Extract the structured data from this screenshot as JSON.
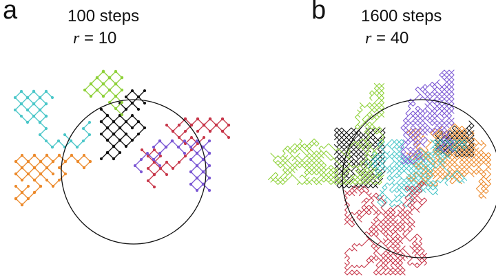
{
  "panels": [
    {
      "label": "a",
      "steps_text": "100 steps",
      "r_symbol": "r",
      "r_text": "= 10"
    },
    {
      "label": "b",
      "steps_text": "1600 steps",
      "r_symbol": "r",
      "r_text": "= 40"
    }
  ],
  "colors": {
    "black": "#111111",
    "green": "#8fd13a",
    "cyan": "#4cc7c9",
    "orange": "#ec8a2c",
    "purple": "#7b57d4",
    "red": "#c7374a",
    "circle": "#111111"
  },
  "walk_series": [
    "green",
    "cyan",
    "orange",
    "black",
    "purple",
    "red"
  ]
}
